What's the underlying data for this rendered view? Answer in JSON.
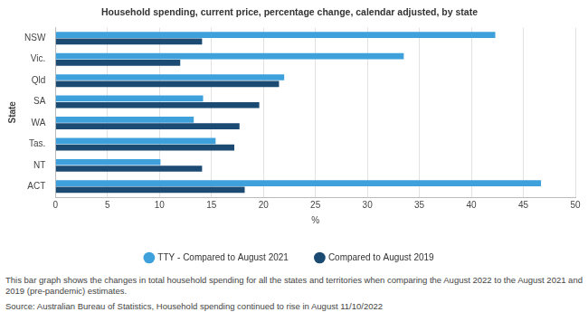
{
  "chart_data": {
    "type": "bar",
    "orientation": "horizontal",
    "title": "Household spending, current price, percentage change, calendar adjusted, by state",
    "x_label": "%",
    "y_label": "State",
    "categories": [
      "NSW",
      "Vic.",
      "Qld",
      "SA",
      "WA",
      "Tas.",
      "NT",
      "ACT"
    ],
    "series": [
      {
        "name": "TTY - Compared to August 2021",
        "color": "#3fa1db",
        "values": [
          42.3,
          33.5,
          22.0,
          14.2,
          13.3,
          15.4,
          10.1,
          46.7
        ]
      },
      {
        "name": "Compared to August 2019",
        "color": "#1b4a72",
        "values": [
          14.1,
          12.0,
          21.5,
          19.6,
          17.7,
          17.2,
          14.1,
          18.2
        ]
      }
    ],
    "xlim": [
      0,
      50
    ],
    "xticks": [
      0,
      5,
      10,
      15,
      20,
      25,
      30,
      35,
      40,
      45,
      50
    ],
    "grid": true,
    "legend": "bottom",
    "annotations": [
      "This bar graph shows the changes in total household spending for all the states and territories when comparing the August 2022 to the August 2021 and 2019 (pre-pandemic) estimates.",
      "Source: Australian Bureau of Statistics, Household spending continued to rise in August 11/10/2022"
    ]
  }
}
